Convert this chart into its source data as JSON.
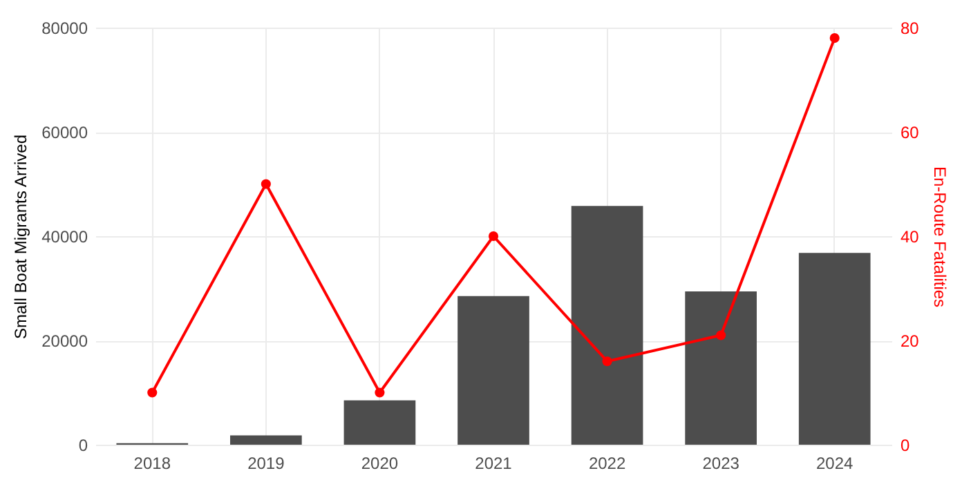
{
  "chart_data": {
    "type": "bar",
    "categories": [
      "2018",
      "2019",
      "2020",
      "2021",
      "2022",
      "2023",
      "2024"
    ],
    "ylabel": "Small Boat Migrants Arrived",
    "y2label": "En-Route Fatalities",
    "series": [
      {
        "color": "#4d4d4d",
        "values": [
          300,
          1800,
          8500,
          28500,
          45800,
          29400,
          36800
        ]
      },
      {
        "type": "line",
        "axis": "y2",
        "color": "#ff0000",
        "values": [
          10,
          50,
          10,
          40,
          16,
          21,
          78
        ]
      }
    ],
    "ylim": [
      0,
      80000
    ],
    "yticks": [
      0,
      20000,
      40000,
      60000,
      80000
    ],
    "y2lim": [
      0,
      80
    ],
    "y2ticks": [
      0,
      20,
      40,
      60,
      80
    ],
    "grid": true,
    "marker": "circle",
    "line_style": "solid"
  }
}
